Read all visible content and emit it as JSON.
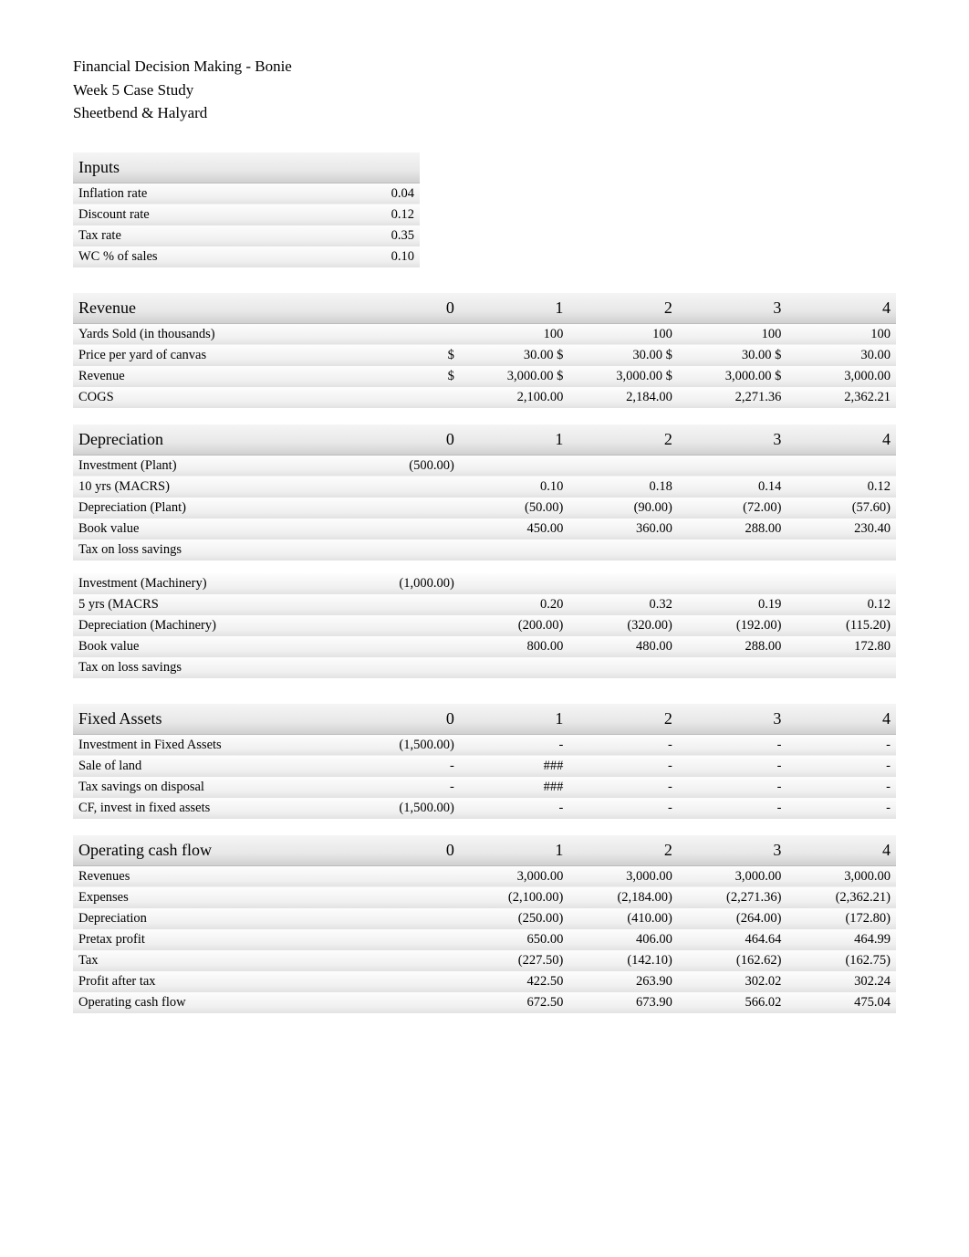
{
  "title": {
    "line1": "Financial Decision Making - Bonie",
    "line2": "Week 5 Case Study",
    "line3": "Sheetbend & Halyard"
  },
  "inputs": {
    "header": "Inputs",
    "rows": [
      {
        "label": "Inflation rate",
        "value": "0.04"
      },
      {
        "label": "Discount rate",
        "value": "0.12"
      },
      {
        "label": "Tax rate",
        "value": "0.35"
      },
      {
        "label": "WC % of sales",
        "value": "0.10"
      }
    ]
  },
  "years": [
    "0",
    "1",
    "2",
    "3",
    "4"
  ],
  "revenue": {
    "header": "Revenue",
    "rows": [
      {
        "label": "Yards Sold (in thousands)",
        "cells": [
          "",
          "100",
          "100",
          "100",
          "100"
        ]
      },
      {
        "label": "Price per yard of canvas",
        "cells": [
          "$",
          "30.00 $",
          "30.00 $",
          "30.00 $",
          "30.00"
        ]
      },
      {
        "label": "Revenue",
        "cells": [
          "$",
          "3,000.00 $",
          "3,000.00 $",
          "3,000.00 $",
          "3,000.00"
        ]
      },
      {
        "label": "COGS",
        "cells": [
          "",
          "2,100.00",
          "2,184.00",
          "2,271.36",
          "2,362.21"
        ]
      }
    ]
  },
  "depreciation": {
    "header": "Depreciation",
    "rows": [
      {
        "label": "Investment (Plant)",
        "cells": [
          "(500.00)",
          "",
          "",
          "",
          ""
        ]
      },
      {
        "label": "10 yrs (MACRS)",
        "cells": [
          "",
          "0.10",
          "0.18",
          "0.14",
          "0.12"
        ]
      },
      {
        "label": "Depreciation (Plant)",
        "cells": [
          "",
          "(50.00)",
          "(90.00)",
          "(72.00)",
          "(57.60)"
        ]
      },
      {
        "label": "Book value",
        "cells": [
          "",
          "450.00",
          "360.00",
          "288.00",
          "230.40"
        ]
      },
      {
        "label": "Tax on loss savings",
        "cells": [
          "",
          "",
          "",
          "",
          ""
        ]
      }
    ],
    "rows2": [
      {
        "label": "Investment (Machinery)",
        "cells": [
          "(1,000.00)",
          "",
          "",
          "",
          ""
        ]
      },
      {
        "label": "5 yrs (MACRS",
        "cells": [
          "",
          "0.20",
          "0.32",
          "0.19",
          "0.12"
        ]
      },
      {
        "label": "Depreciation (Machinery)",
        "cells": [
          "",
          "(200.00)",
          "(320.00)",
          "(192.00)",
          "(115.20)"
        ]
      },
      {
        "label": "Book value",
        "cells": [
          "",
          "800.00",
          "480.00",
          "288.00",
          "172.80"
        ]
      },
      {
        "label": "Tax on loss savings",
        "cells": [
          "",
          "",
          "",
          "",
          ""
        ]
      }
    ]
  },
  "fixed_assets": {
    "header": "Fixed Assets",
    "rows": [
      {
        "label": "Investment in Fixed Assets",
        "cells": [
          "(1,500.00)",
          "-",
          "-",
          "-",
          "-"
        ]
      },
      {
        "label": "Sale of land",
        "cells": [
          "-",
          "###",
          "-",
          "-",
          "-"
        ]
      },
      {
        "label": "Tax savings on disposal",
        "cells": [
          "-",
          "###",
          "-",
          "-",
          "-"
        ]
      },
      {
        "label": "CF, invest in fixed assets",
        "cells": [
          "(1,500.00)",
          "-",
          "-",
          "-",
          "-"
        ]
      }
    ]
  },
  "ocf": {
    "header": "Operating cash flow",
    "rows": [
      {
        "label": "Revenues",
        "cells": [
          "",
          "3,000.00",
          "3,000.00",
          "3,000.00",
          "3,000.00"
        ]
      },
      {
        "label": "Expenses",
        "cells": [
          "",
          "(2,100.00)",
          "(2,184.00)",
          "(2,271.36)",
          "(2,362.21)"
        ]
      },
      {
        "label": "Depreciation",
        "cells": [
          "",
          "(250.00)",
          "(410.00)",
          "(264.00)",
          "(172.80)"
        ]
      },
      {
        "label": "Pretax profit",
        "cells": [
          "",
          "650.00",
          "406.00",
          "464.64",
          "464.99"
        ]
      },
      {
        "label": "Tax",
        "cells": [
          "",
          "(227.50)",
          "(142.10)",
          "(162.62)",
          "(162.75)"
        ]
      },
      {
        "label": "Profit after tax",
        "cells": [
          "",
          "422.50",
          "263.90",
          "302.02",
          "302.24"
        ]
      },
      {
        "label": "Operating cash flow",
        "cells": [
          "",
          "672.50",
          "673.90",
          "566.02",
          "475.04"
        ]
      }
    ]
  }
}
